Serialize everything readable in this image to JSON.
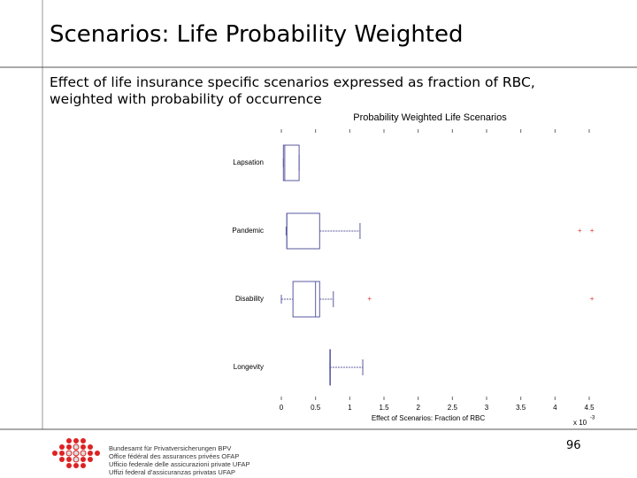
{
  "header": {
    "title": "Scenarios: Life Probability Weighted"
  },
  "subtitle": [
    "Effect of life insurance specific scenarios expressed as fraction of RBC,",
    "weighted with probability of occurrence"
  ],
  "chart_data": {
    "type": "box",
    "title": "Probability Weighted Life Scenarios",
    "xlabel": "Effect of Scenarios: Fraction of RBC",
    "axis_multiplier": {
      "base": "x 10",
      "exponent": "-3"
    },
    "categories": [
      "Lapsation",
      "Pandemic",
      "Disability",
      "Longevity"
    ],
    "boxes": [
      {
        "min": 0.03,
        "q1": 0.03,
        "median": 0.05,
        "q3": 0.26,
        "max": 0.26,
        "outliers": []
      },
      {
        "min": 0.07,
        "q1": 0.08,
        "median": 0.08,
        "q3": 0.56,
        "max": 1.15,
        "outliers": [
          4.36,
          4.54
        ]
      },
      {
        "min": 0.0,
        "q1": 0.17,
        "median": 0.5,
        "q3": 0.56,
        "max": 0.76,
        "outliers": [
          1.29,
          4.54
        ]
      },
      {
        "min": 0.71,
        "q1": 0.71,
        "median": 0.71,
        "q3": 0.71,
        "max": 1.19,
        "outliers": []
      }
    ],
    "color": "#5a5aa0",
    "outlier_color": "#e03030",
    "xlim": [
      0,
      4.5
    ],
    "xticks": [
      0,
      0.5,
      1,
      1.5,
      2,
      2.5,
      3,
      3.5,
      4,
      4.5
    ]
  },
  "footer": {
    "lines": [
      "Bundesamt für Privatversicherungen BPV",
      "Office fédéral des assurances privées OFAP",
      "Ufficio federale delle assicurazioni private UFAP",
      "Uffizi federal d'assicuranzas privatas UFAP"
    ],
    "page_number": "96"
  }
}
